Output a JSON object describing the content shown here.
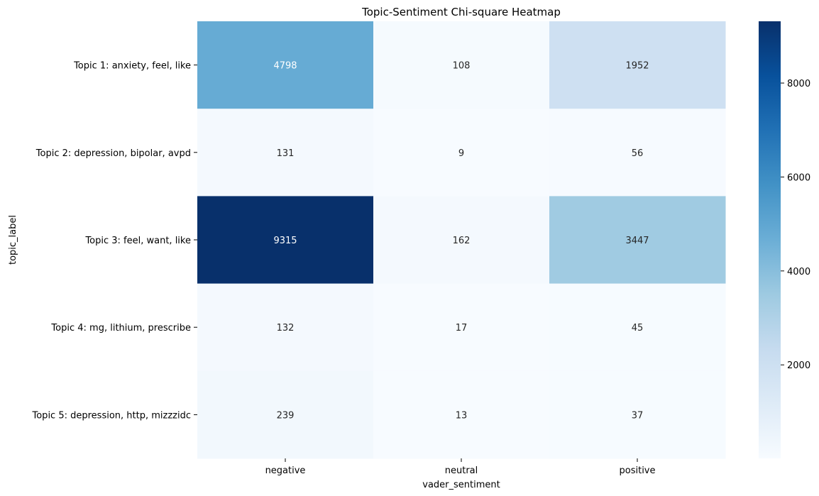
{
  "chart_data": {
    "type": "heatmap",
    "title": "Topic-Sentiment Chi-square Heatmap",
    "xlabel": "vader_sentiment",
    "ylabel": "topic_label",
    "x_categories": [
      "negative",
      "neutral",
      "positive"
    ],
    "y_categories": [
      "Topic 1: anxiety, feel, like",
      "Topic 2: depression, bipolar, avpd",
      "Topic 3: feel, want, like",
      "Topic 4: mg, lithium, prescribe",
      "Topic 5: depression, http, mizzzidc"
    ],
    "values": [
      [
        4798,
        108,
        1952
      ],
      [
        131,
        9,
        56
      ],
      [
        9315,
        162,
        3447
      ],
      [
        132,
        17,
        45
      ],
      [
        239,
        13,
        37
      ]
    ],
    "colormap": "Blues",
    "vmin": 9,
    "vmax": 9315,
    "colorbar_ticks": [
      2000,
      4000,
      6000,
      8000
    ]
  }
}
